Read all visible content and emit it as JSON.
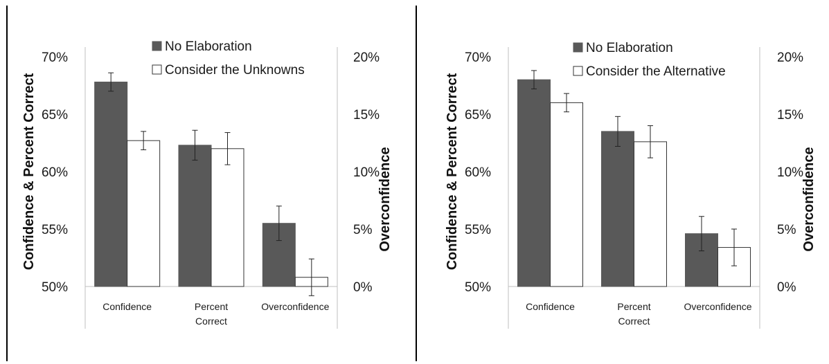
{
  "colors": {
    "no_elaboration": "#595959",
    "elaboration": "#ffffff",
    "outline": "#333333",
    "axis": "#bfbfbf"
  },
  "chart_data": [
    {
      "type": "bar",
      "ylabel": "Confidence & Percent Correct",
      "y2label": "Overconfidence",
      "ylim": [
        0.5,
        0.7
      ],
      "y2lim": [
        0,
        0.2
      ],
      "yticks": [
        "50%",
        "55%",
        "60%",
        "65%",
        "70%"
      ],
      "y2ticks": [
        "0%",
        "5%",
        "10%",
        "15%",
        "20%"
      ],
      "categories": [
        [
          "Confidence"
        ],
        [
          "Percent",
          "Correct"
        ],
        [
          "Overconfidence"
        ]
      ],
      "legend_position": "top",
      "series": [
        {
          "name": "No Elaboration",
          "values": [
            0.678,
            0.623,
            0.055
          ],
          "errors": [
            0.008,
            0.013,
            0.015
          ]
        },
        {
          "name": "Consider the Unknowns",
          "values": [
            0.627,
            0.62,
            0.008
          ],
          "errors": [
            0.008,
            0.014,
            0.016
          ]
        }
      ]
    },
    {
      "type": "bar",
      "ylabel": "Confidence & Percent Correct",
      "y2label": "Overconfidence",
      "ylim": [
        0.5,
        0.7
      ],
      "y2lim": [
        0,
        0.2
      ],
      "yticks": [
        "50%",
        "55%",
        "60%",
        "65%",
        "70%"
      ],
      "y2ticks": [
        "0%",
        "5%",
        "10%",
        "15%",
        "20%"
      ],
      "categories": [
        [
          "Confidence"
        ],
        [
          "Percent",
          "Correct"
        ],
        [
          "Overconfidence"
        ]
      ],
      "legend_position": "top",
      "series": [
        {
          "name": "No Elaboration",
          "values": [
            0.68,
            0.635,
            0.046
          ],
          "errors": [
            0.008,
            0.013,
            0.015
          ]
        },
        {
          "name": "Consider the Alternative",
          "values": [
            0.66,
            0.626,
            0.034
          ],
          "errors": [
            0.008,
            0.014,
            0.016
          ]
        }
      ]
    }
  ]
}
